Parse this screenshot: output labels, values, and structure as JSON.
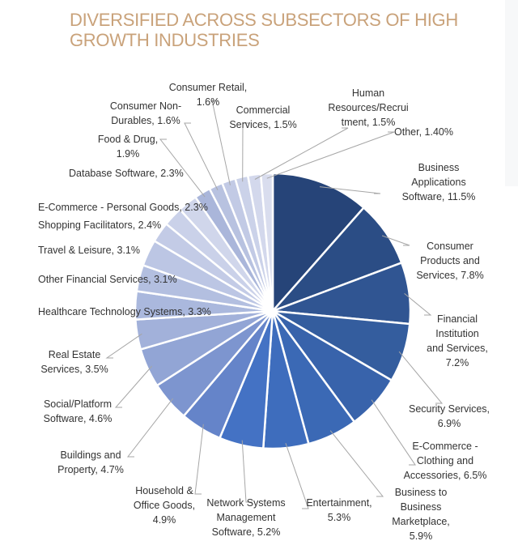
{
  "title_lines": [
    "DIVERSIFIED ACROSS SUBSECTORS OF HIGH",
    "GROWTH INDUSTRIES"
  ],
  "chart_data": {
    "type": "pie",
    "title": "DIVERSIFIED ACROSS SUBSECTORS OF HIGH GROWTH INDUSTRIES",
    "start": "12 o'clock",
    "direction": "clockwise",
    "slices": [
      {
        "label": "Business Applications Software",
        "value": 11.5,
        "display": "11.5%",
        "color": "#264478"
      },
      {
        "label": "Consumer Products and Services",
        "value": 7.8,
        "display": "7.8%",
        "color": "#2b4d85"
      },
      {
        "label": "Financial Institution and Services",
        "value": 7.2,
        "display": "7.2%",
        "color": "#305592"
      },
      {
        "label": "Security Services",
        "value": 6.9,
        "display": "6.9%",
        "color": "#345d9e"
      },
      {
        "label": "E-Commerce - Clothing and Accessories",
        "value": 6.5,
        "display": "6.5%",
        "color": "#3863ab"
      },
      {
        "label": "Business to Business Marketplace",
        "value": 5.9,
        "display": "5.9%",
        "color": "#3b69b5"
      },
      {
        "label": "Entertainment",
        "value": 5.3,
        "display": "5.3%",
        "color": "#3e6dbd"
      },
      {
        "label": "Network Systems Management Software",
        "value": 5.2,
        "display": "5.2%",
        "color": "#4472c4"
      },
      {
        "label": "Household & Office Goods",
        "value": 4.9,
        "display": "4.9%",
        "color": "#6584c9"
      },
      {
        "label": "Buildings and Property",
        "value": 4.7,
        "display": "4.7%",
        "color": "#7d95cf"
      },
      {
        "label": "Social/Platform Software",
        "value": 4.6,
        "display": "4.6%",
        "color": "#92a5d5"
      },
      {
        "label": "Real Estate Services",
        "value": 3.5,
        "display": "3.5%",
        "color": "#a2b1da"
      },
      {
        "label": "Healthcare Technology Systems",
        "value": 3.3,
        "display": "3.3%",
        "color": "#aab8dd"
      },
      {
        "label": "Other Financial Services",
        "value": 3.1,
        "display": "3.1%",
        "color": "#b3bfe0"
      },
      {
        "label": "Travel & Leisure",
        "value": 3.1,
        "display": "3.1%",
        "color": "#bcc6e4"
      },
      {
        "label": "Shopping Facilitators",
        "value": 2.4,
        "display": "2.4%",
        "color": "#c3cbe6"
      },
      {
        "label": "E-Commerce - Personal Goods",
        "value": 2.3,
        "display": "2.3%",
        "color": "#cad1e9"
      },
      {
        "label": "Database Software",
        "value": 2.3,
        "display": "2.3%",
        "color": "#d0d6eb"
      },
      {
        "label": "Food & Drug",
        "value": 1.9,
        "display": "1.9%",
        "color": "#aab6da"
      },
      {
        "label": "Consumer Non-Durables",
        "value": 1.6,
        "display": "1.6%",
        "color": "#b8c2e0"
      },
      {
        "label": "Consumer Retail",
        "value": 1.6,
        "display": "1.6%",
        "color": "#c2cae5"
      },
      {
        "label": "Commercial Services",
        "value": 1.5,
        "display": "1.5%",
        "color": "#cbd2e9"
      },
      {
        "label": "Human Resources/Recruitment",
        "value": 1.5,
        "display": "1.5%",
        "color": "#d3d8ec"
      },
      {
        "label": "Other",
        "value": 1.4,
        "display": "1.40%",
        "color": "#d9ddee"
      }
    ],
    "data_labels": [
      [
        "Business",
        "Applications",
        "Software, 11.5%"
      ],
      [
        "Consumer",
        "Products and",
        "Services, 7.8%"
      ],
      [
        "Financial",
        "Institution",
        "and Services,",
        "7.2%"
      ],
      [
        "Security Services,",
        "6.9%"
      ],
      [
        "E-Commerce -",
        "Clothing and",
        "Accessories, 6.5%"
      ],
      [
        "Business to",
        "Business",
        "Marketplace,",
        "5.9%"
      ],
      [
        "Entertainment,",
        "5.3%"
      ],
      [
        "Network Systems",
        "Management",
        "Software, 5.2%"
      ],
      [
        "Household &",
        "Office Goods,",
        "4.9%"
      ],
      [
        "Buildings and",
        "Property, 4.7%"
      ],
      [
        "Social/Platform",
        "Software, 4.6%"
      ],
      [
        "Real Estate",
        "Services, 3.5%"
      ],
      [
        "Healthcare Technology Systems, 3.3%"
      ],
      [
        "Other Financial Services, 3.1%"
      ],
      [
        "Travel & Leisure, 3.1%"
      ],
      [
        "Shopping Facilitators, 2.4%"
      ],
      [
        "E-Commerce - Personal Goods, 2.3%"
      ],
      [
        "Database Software, 2.3%"
      ],
      [
        "Food & Drug,",
        "1.9%"
      ],
      [
        "Consumer Non-",
        "Durables, 1.6%"
      ],
      [
        "Consumer Retail,",
        "1.6%"
      ],
      [
        "Commercial",
        "Services, 1.5%"
      ],
      [
        "Human",
        "Resources/Recrui",
        "tment, 1.5%"
      ],
      [
        "Other, 1.40%"
      ]
    ],
    "legend": "none (data labels with leader lines)",
    "separator_color": "#ffffff",
    "leader_line_color": "#a6a6a6",
    "label_color": "#333333"
  }
}
